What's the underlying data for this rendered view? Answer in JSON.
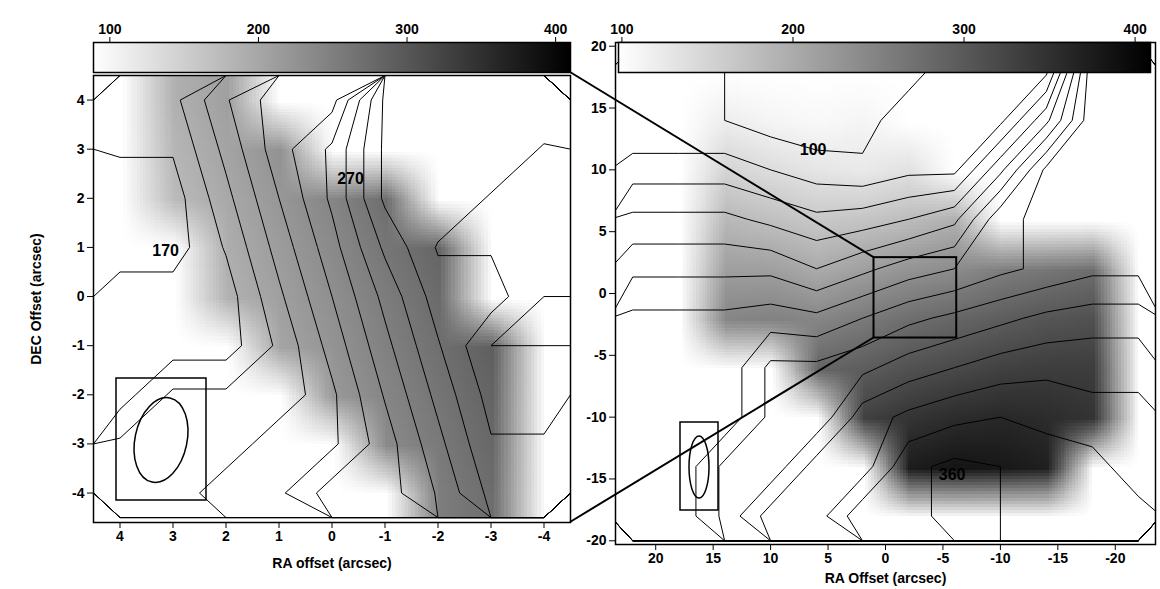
{
  "chart_data": [
    {
      "type": "heatmap",
      "x_label": "RA offset (arcsec)",
      "y_label": "DEC Offset (arcsec)",
      "xlim": [
        4.5,
        -4.5
      ],
      "ylim": [
        -4.6,
        4.5
      ],
      "xticks": [
        4,
        3,
        2,
        1,
        0,
        -1,
        -2,
        -3,
        -4
      ],
      "yticks": [
        -4,
        -3,
        -2,
        -1,
        0,
        1,
        2,
        3,
        4
      ],
      "x": [
        4,
        3,
        2,
        1,
        0,
        -1,
        -2,
        -3,
        -4
      ],
      "y": [
        4,
        3,
        2,
        1,
        0,
        -1,
        -2,
        -3,
        -4
      ],
      "values": [
        [
          null,
          187,
          209,
          null,
          null,
          null,
          null,
          null,
          null
        ],
        [
          null,
          181,
          203,
          226,
          null,
          null,
          null,
          null,
          null
        ],
        [
          null,
          175,
          197,
          220,
          242,
          272,
          null,
          null,
          null
        ],
        [
          null,
          null,
          191,
          214,
          236,
          262,
          281,
          null,
          null
        ],
        [
          null,
          null,
          185,
          208,
          230,
          253,
          275,
          null,
          null
        ],
        [
          null,
          null,
          null,
          202,
          224,
          247,
          269,
          290,
          null
        ],
        [
          null,
          null,
          null,
          null,
          218,
          241,
          263,
          284,
          null
        ],
        [
          null,
          null,
          null,
          null,
          null,
          235,
          257,
          279,
          null
        ],
        [
          null,
          null,
          null,
          null,
          null,
          null,
          251,
          273,
          null
        ]
      ],
      "contour_levels": [
        170,
        180,
        190,
        200,
        210,
        220,
        230,
        240,
        250,
        260,
        270,
        280,
        290
      ],
      "colorbar": {
        "range": [
          89,
          410
        ],
        "ticks": [
          100,
          200,
          300,
          400
        ]
      },
      "annotations": [
        {
          "text": "270",
          "x": -0.35,
          "y": 2.39
        },
        {
          "text": "170",
          "x": 3.14,
          "y": 0.92
        }
      ]
    },
    {
      "type": "heatmap",
      "x_label": "RA Offset (arcsec)",
      "y_label": null,
      "xlim": [
        23.5,
        -23.5
      ],
      "ylim": [
        -20.3,
        20.3
      ],
      "xticks": [
        20,
        15,
        10,
        5,
        0,
        -5,
        -10,
        -15,
        -20
      ],
      "yticks": [
        -20,
        -15,
        -10,
        -5,
        0,
        5,
        10,
        15,
        20
      ],
      "x": [
        22,
        18,
        14,
        10,
        6,
        2,
        -2,
        -6,
        -10,
        -14,
        -18,
        -22
      ],
      "y": [
        18,
        14,
        10,
        6,
        2,
        -2,
        -6,
        -10,
        -14,
        -18
      ],
      "values": [
        [
          null,
          null,
          null,
          null,
          null,
          null,
          null,
          null,
          null,
          null,
          null,
          null
        ],
        [
          null,
          null,
          120,
          110,
          105,
          110,
          null,
          null,
          null,
          null,
          null,
          null
        ],
        [
          null,
          null,
          150,
          140,
          130,
          125,
          135,
          null,
          null,
          null,
          null,
          null
        ],
        [
          null,
          null,
          185,
          175,
          165,
          170,
          180,
          195,
          null,
          null,
          null,
          null
        ],
        [
          null,
          null,
          215,
          215,
          200,
          215,
          230,
          240,
          255,
          265,
          275,
          null
        ],
        [
          null,
          null,
          245,
          250,
          245,
          260,
          275,
          285,
          295,
          305,
          310,
          null
        ],
        [
          null,
          null,
          null,
          null,
          285,
          295,
          310,
          320,
          330,
          335,
          335,
          null
        ],
        [
          null,
          null,
          null,
          null,
          null,
          330,
          345,
          355,
          360,
          355,
          345,
          null
        ],
        [
          null,
          null,
          null,
          null,
          null,
          null,
          375,
          385,
          380,
          370,
          null,
          null
        ],
        [
          null,
          null,
          null,
          null,
          null,
          null,
          null,
          null,
          null,
          null,
          null,
          null
        ]
      ],
      "contour_levels": [
        100,
        120,
        140,
        160,
        180,
        200,
        220,
        240,
        260,
        280,
        300,
        320,
        340,
        360,
        380
      ],
      "colorbar": {
        "range": [
          98,
          409
        ],
        "ticks": [
          100,
          200,
          300,
          400
        ]
      },
      "annotations": [
        {
          "text": "100",
          "x": 6.3,
          "y": 11.6
        },
        {
          "text": "360",
          "x": -5.8,
          "y": -14.7
        }
      ],
      "inset_region": {
        "x": [
          1.0,
          -6.2
        ],
        "y": [
          -3.6,
          2.9
        ]
      }
    }
  ]
}
